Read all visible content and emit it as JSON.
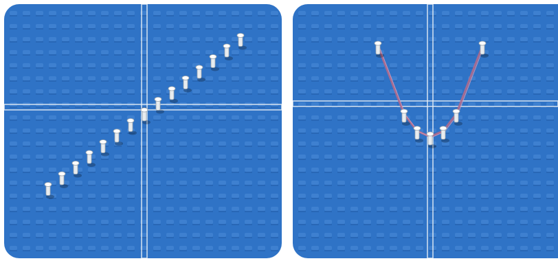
{
  "scene": {
    "left_board": {
      "graph": "linear",
      "pegs_per_side": 7,
      "slope": 1
    },
    "right_board": {
      "graph": "parabola",
      "peg_x_values": [
        -2,
        -1,
        -0.5,
        0,
        0.5,
        1,
        2
      ],
      "string_color": "#b06a8c"
    },
    "colors": {
      "board": "#2f73c6",
      "board_dark": "#245fab",
      "stud": "#4a8ad8",
      "axis": "#e8eef5",
      "peg": "#e8ecef",
      "peg_shadow": "#9aa4ad"
    }
  }
}
